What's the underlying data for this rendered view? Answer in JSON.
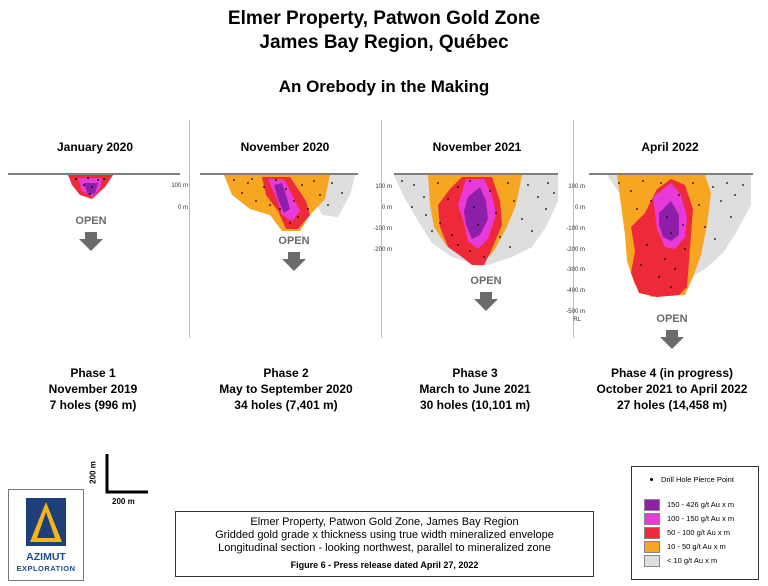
{
  "title_line1": "Elmer Property, Patwon Gold Zone",
  "title_line2": "James Bay Region, Québec",
  "subtitle": "An Orebody in the Making",
  "elevation_labels": [
    "100 m",
    "0 m",
    "-100 m",
    "-200 m",
    "-300 m",
    "-400 m",
    "-500 m"
  ],
  "rl_label": "RL",
  "open_label": "OPEN",
  "panels": [
    {
      "date": "January 2020",
      "phase": "Phase 1",
      "period": "November 2019",
      "holes": "7 holes (996 m)"
    },
    {
      "date": "November 2020",
      "phase": "Phase 2",
      "period": "May to September 2020",
      "holes": "34 holes (7,401 m)"
    },
    {
      "date": "November 2021",
      "phase": "Phase 3",
      "period": "March to June 2021",
      "holes": "30 holes (10,101 m)"
    },
    {
      "date": "April 2022",
      "phase": "Phase 4 (in progress)",
      "period": "October 2021 to April 2022",
      "holes": "27 holes (14,458 m)"
    }
  ],
  "scale": {
    "vertical": "200 m",
    "horizontal": "200 m"
  },
  "legend": {
    "pierce_point": "Drill Hole Pierce Point",
    "classes": [
      {
        "label": "150 - 426 g/t Au x m",
        "color": "#8e1fa8"
      },
      {
        "label": "100 - 150 g/t Au x m",
        "color": "#e83ad8"
      },
      {
        "label": "50 - 100 g/t Au x m",
        "color": "#ee2a3a"
      },
      {
        "label": "10 - 50 g/t Au x m",
        "color": "#f7a621"
      },
      {
        "label": "< 10 g/t Au x m",
        "color": "#dedede"
      }
    ]
  },
  "footer": {
    "line1": "Elmer Property, Patwon Gold Zone, James Bay Region",
    "line2": "Gridded gold grade x thickness using true width mineralized envelope",
    "line3": "Longitudinal section - looking northwest, parallel to mineralized zone",
    "figure": "Figure 6 - Press release dated April 27, 2022"
  },
  "logo": {
    "name": "AZIMUT",
    "sub": "EXPLORATION",
    "colors": {
      "navy": "#1f3f7a",
      "gold": "#f2b61c"
    }
  }
}
